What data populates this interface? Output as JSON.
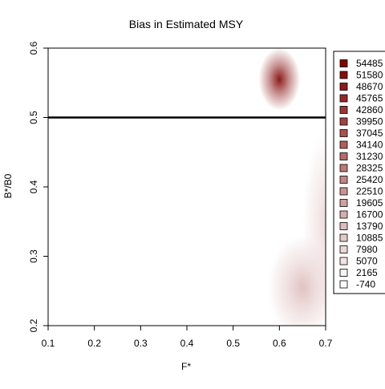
{
  "chart_data": {
    "type": "heatmap",
    "title": "Bias in Estimated MSY",
    "xlabel": "F*",
    "ylabel": "B*/B0",
    "xlim": [
      0.1,
      0.7
    ],
    "ylim": [
      0.2,
      0.6
    ],
    "x_ticks": [
      "0.1",
      "0.2",
      "0.3",
      "0.4",
      "0.5",
      "0.6",
      "0.7"
    ],
    "y_ticks": [
      "0.2",
      "0.3",
      "0.4",
      "0.5",
      "0.6"
    ],
    "reference_line": {
      "y": 0.5
    },
    "legend": {
      "position": "right",
      "levels": [
        "54485",
        "51580",
        "48670",
        "45765",
        "42860",
        "39950",
        "37045",
        "34140",
        "31230",
        "28325",
        "25420",
        "22510",
        "19605",
        "16700",
        "13790",
        "10885",
        "7980",
        "5070",
        "2165",
        "-740"
      ]
    },
    "colors": {
      "high": "#800000",
      "low": "#ffffff"
    },
    "hotspots": [
      {
        "x": 0.6,
        "y": 0.555,
        "value": 54485
      },
      {
        "x": 0.65,
        "y": 0.255,
        "value": 13790
      },
      {
        "x": 0.7,
        "y": 0.35,
        "value": 7980
      }
    ]
  }
}
